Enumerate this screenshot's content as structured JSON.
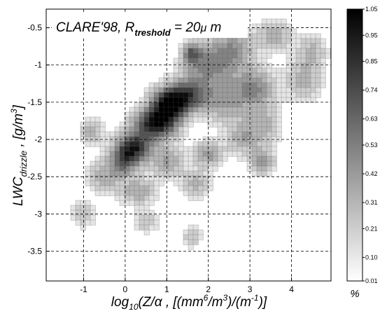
{
  "chart_data": {
    "type": "heatmap",
    "title_main": "CLARE'98, R",
    "title_sub": "treshold",
    "title_rest": " = 20",
    "title_mu": "μ",
    "title_unit": " m",
    "xlabel": "log",
    "xlabel_sub": "10",
    "xlabel_rest": "(Z/",
    "xlabel_alpha": "α",
    "xlabel_units": " , [(mm",
    "xlabel_sup6": "6",
    "xlabel_m": "/m",
    "xlabel_sup3": "3",
    "xlabel_mid": ")/(m",
    "xlabel_supm1": "-1",
    "xlabel_end": ")]",
    "ylabel": "LWC",
    "ylabel_sub": "drizzle",
    "ylabel_units": " , [g/m",
    "ylabel_sup": "3",
    "ylabel_end": "]",
    "xlim": [
      -1.9,
      4.95
    ],
    "ylim": [
      -3.9,
      -0.25
    ],
    "xticks": [
      -1,
      0,
      1,
      2,
      3,
      4
    ],
    "xtick_labels": [
      "-1",
      "0",
      "1",
      "2",
      "3",
      "4"
    ],
    "yticks": [
      -0.5,
      -1,
      -1.5,
      -2,
      -2.5,
      -3,
      -3.5
    ],
    "ytick_labels": [
      "-0.5",
      "-1",
      "-1.5",
      "-2",
      "-2.5",
      "-3",
      "-3.5"
    ],
    "grid": true,
    "colorbar": {
      "ticks": [
        1.05,
        0.95,
        0.85,
        0.74,
        0.63,
        0.53,
        0.42,
        0.31,
        0.21,
        0.1,
        0.01
      ],
      "tick_labels": [
        "1.05",
        "0.95",
        "0.85",
        "0.74",
        "0.63",
        "0.53",
        "0.42",
        "0.31",
        "0.21",
        "0.10",
        "0.01"
      ],
      "unit_label": "%",
      "range": [
        0.01,
        1.05
      ],
      "colormap": "gray-reversed"
    },
    "density_blobs": [
      {
        "x": 0.2,
        "y": -2.1,
        "v": 0.85,
        "sx": 0.3,
        "sy": 0.12
      },
      {
        "x": 0.7,
        "y": -1.8,
        "v": 0.95,
        "sx": 0.35,
        "sy": 0.14
      },
      {
        "x": 1.05,
        "y": -1.55,
        "v": 1.0,
        "sx": 0.3,
        "sy": 0.15
      },
      {
        "x": 1.5,
        "y": -1.4,
        "v": 0.7,
        "sx": 0.35,
        "sy": 0.15
      },
      {
        "x": 0.0,
        "y": -2.3,
        "v": 0.6,
        "sx": 0.25,
        "sy": 0.12
      },
      {
        "x": 1.6,
        "y": -0.85,
        "v": 0.55,
        "sx": 0.15,
        "sy": 0.1
      },
      {
        "x": 2.0,
        "y": -1.0,
        "v": 0.45,
        "sx": 0.4,
        "sy": 0.2
      },
      {
        "x": 2.6,
        "y": -0.8,
        "v": 0.4,
        "sx": 0.35,
        "sy": 0.18
      },
      {
        "x": 3.1,
        "y": -1.3,
        "v": 0.45,
        "sx": 0.35,
        "sy": 0.18
      },
      {
        "x": 2.4,
        "y": -1.5,
        "v": 0.35,
        "sx": 0.35,
        "sy": 0.2
      },
      {
        "x": 2.0,
        "y": -2.2,
        "v": 0.4,
        "sx": 0.25,
        "sy": 0.12
      },
      {
        "x": 3.3,
        "y": -2.3,
        "v": 0.4,
        "sx": 0.2,
        "sy": 0.12
      },
      {
        "x": 3.3,
        "y": -1.8,
        "v": 0.3,
        "sx": 0.3,
        "sy": 0.2
      },
      {
        "x": 4.3,
        "y": -1.2,
        "v": 0.3,
        "sx": 0.3,
        "sy": 0.2
      },
      {
        "x": -0.5,
        "y": -2.5,
        "v": 0.3,
        "sx": 0.3,
        "sy": 0.15
      },
      {
        "x": -0.8,
        "y": -1.9,
        "v": 0.3,
        "sx": 0.2,
        "sy": 0.12
      },
      {
        "x": 0.3,
        "y": -2.7,
        "v": 0.35,
        "sx": 0.3,
        "sy": 0.12
      },
      {
        "x": 1.0,
        "y": -2.3,
        "v": 0.35,
        "sx": 0.3,
        "sy": 0.15
      },
      {
        "x": 1.7,
        "y": -2.6,
        "v": 0.3,
        "sx": 0.25,
        "sy": 0.12
      },
      {
        "x": 3.6,
        "y": -0.6,
        "v": 0.3,
        "sx": 0.3,
        "sy": 0.15
      },
      {
        "x": 4.5,
        "y": -0.8,
        "v": 0.25,
        "sx": 0.25,
        "sy": 0.15
      },
      {
        "x": -1.0,
        "y": -3.0,
        "v": 0.25,
        "sx": 0.2,
        "sy": 0.12
      },
      {
        "x": 0.5,
        "y": -3.1,
        "v": 0.25,
        "sx": 0.2,
        "sy": 0.1
      },
      {
        "x": 1.6,
        "y": -3.3,
        "v": 0.25,
        "sx": 0.15,
        "sy": 0.1
      },
      {
        "x": 2.8,
        "y": -2.0,
        "v": 0.3,
        "sx": 0.25,
        "sy": 0.15
      }
    ]
  }
}
